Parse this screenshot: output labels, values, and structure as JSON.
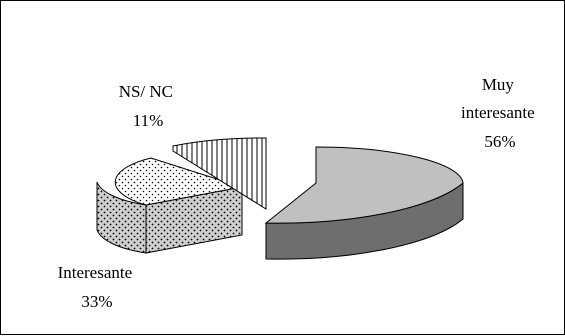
{
  "chart_data": {
    "type": "pie",
    "style": "3d-exploded",
    "title": "",
    "slices": [
      {
        "label_lines": [
          "Muy",
          "interesante"
        ],
        "value": 56,
        "value_label": "56%",
        "pattern": "solid-gray",
        "top_color": "#c0c0c0",
        "side_color": "#6e6e6e"
      },
      {
        "label_lines": [
          "Interesante"
        ],
        "value": 33,
        "value_label": "33%",
        "pattern": "dots",
        "top_color": "#ffffff",
        "side_color": "#c8c8c8"
      },
      {
        "label_lines": [
          "NS/ NC"
        ],
        "value": 11,
        "value_label": "11%",
        "pattern": "vertical-lines",
        "top_color": "#ffffff",
        "side_color": "#ffffff"
      }
    ],
    "legend": "none"
  }
}
